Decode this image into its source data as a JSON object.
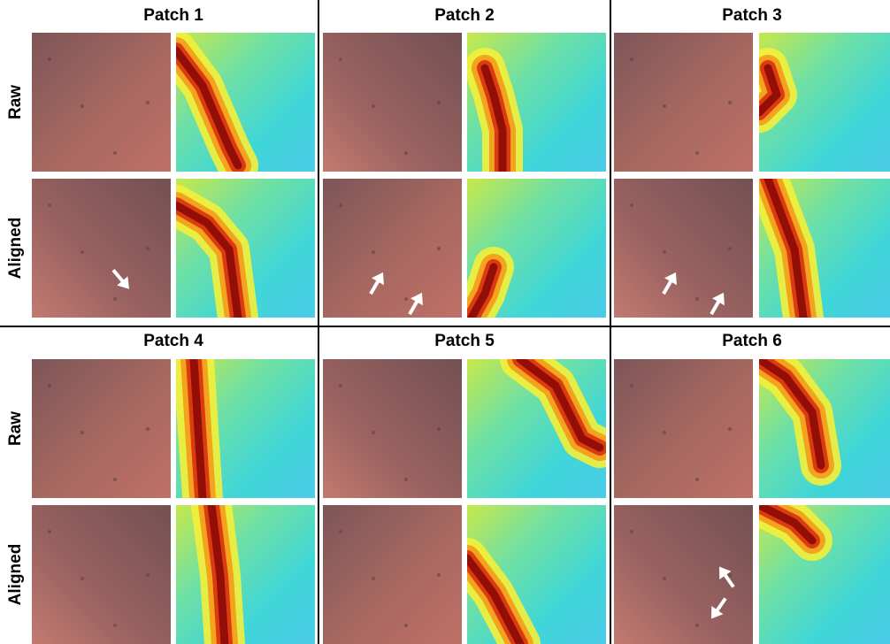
{
  "sections": [
    {
      "patches": [
        "Patch 1",
        "Patch 2",
        "Patch 3"
      ],
      "row_labels": [
        "Raw",
        "Aligned"
      ]
    },
    {
      "patches": [
        "Patch 4",
        "Patch 5",
        "Patch 6"
      ],
      "row_labels": [
        "Raw",
        "Aligned"
      ]
    }
  ]
}
